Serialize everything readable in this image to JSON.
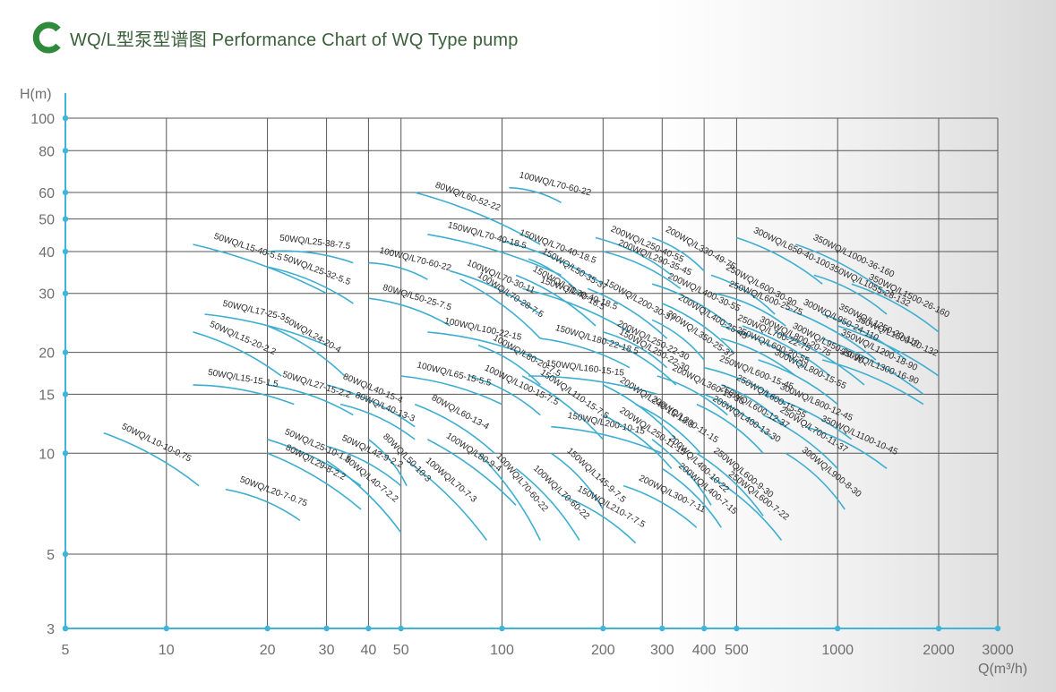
{
  "header": {
    "title": "WQ/L型泵型谱图  Performance Chart of WQ Type pump"
  },
  "colors": {
    "curve": "#3eaed0",
    "axis": "#3fb5d9",
    "grid": "#555555",
    "brand": "#2f8a3c",
    "title": "#3a5f3a"
  },
  "chart_data": {
    "type": "line",
    "ylabel": "H(m)",
    "xlabel": "Q(m³/h)",
    "x_scale": "log",
    "y_scale": "log",
    "xlim": [
      5,
      3000
    ],
    "ylim": [
      3,
      100
    ],
    "x_ticks": [
      5,
      10,
      20,
      30,
      40,
      50,
      100,
      200,
      300,
      400,
      500,
      1000,
      2000,
      3000
    ],
    "x_tick_labels": [
      "5",
      "10",
      "20",
      "30",
      "40",
      "50",
      "100",
      "200",
      "300",
      "400",
      "500",
      "1000",
      "2000",
      "3000"
    ],
    "y_ticks": [
      3,
      5,
      10,
      15,
      20,
      30,
      40,
      50,
      60,
      80,
      100
    ],
    "y_tick_labels": [
      "3",
      "5",
      "10",
      "15",
      "20",
      "30",
      "40",
      "50",
      "60",
      "80",
      "100"
    ],
    "grid": true,
    "series": [
      {
        "name": "100WQ/L70-60-22",
        "q": [
          105,
          150
        ],
        "h": [
          62,
          56
        ]
      },
      {
        "name": "80WQ/L60-52-22",
        "q": [
          55,
          130
        ],
        "h": [
          60,
          42
        ]
      },
      {
        "name": "150WQ/L70-40-18.5",
        "q": [
          60,
          150
        ],
        "h": [
          45,
          34
        ]
      },
      {
        "name": "50WQ/L15-40-5.5",
        "q": [
          12,
          30
        ],
        "h": [
          42,
          30
        ]
      },
      {
        "name": "50WQ/L25-38-7.5",
        "q": [
          20,
          36
        ],
        "h": [
          40,
          37
        ]
      },
      {
        "name": "50WQ/L25-32-5.5",
        "q": [
          20,
          36
        ],
        "h": [
          36,
          28
        ]
      },
      {
        "name": "100WQ/L70-60-22",
        "q": [
          40,
          60
        ],
        "h": [
          37,
          33
        ]
      },
      {
        "name": "100WQ/L70-30-11",
        "q": [
          70,
          130
        ],
        "h": [
          35,
          26
        ]
      },
      {
        "name": "100WQ/L70-28-7.5",
        "q": [
          75,
          130
        ],
        "h": [
          33,
          22
        ]
      },
      {
        "name": "80WQ/L50-25-7.5",
        "q": [
          40,
          70
        ],
        "h": [
          29,
          24
        ]
      },
      {
        "name": "50WQ/L17-25-3",
        "q": [
          13,
          30
        ],
        "h": [
          26,
          21
        ]
      },
      {
        "name": "50WQ/L15-20-2.2",
        "q": [
          12,
          22
        ],
        "h": [
          23,
          17
        ]
      },
      {
        "name": "50WQ/L24-20-4",
        "q": [
          20,
          34
        ],
        "h": [
          24,
          17
        ]
      },
      {
        "name": "100WQ/L100-22-15",
        "q": [
          60,
          130
        ],
        "h": [
          23,
          19
        ]
      },
      {
        "name": "100WQ/L80-20-7.5",
        "q": [
          85,
          130
        ],
        "h": [
          21,
          16
        ]
      },
      {
        "name": "50WQ/L15-15-1.5",
        "q": [
          12,
          24
        ],
        "h": [
          16,
          14
        ]
      },
      {
        "name": "50WQ/L27-15-2.2",
        "q": [
          20,
          36
        ],
        "h": [
          16,
          13
        ]
      },
      {
        "name": "80WQ/L40-15-4",
        "q": [
          30,
          55
        ],
        "h": [
          16,
          12
        ]
      },
      {
        "name": "80WQ/L40-13-3",
        "q": [
          33,
          55
        ],
        "h": [
          14,
          11
        ]
      },
      {
        "name": "100WQ/L65-15-5.5",
        "q": [
          50,
          100
        ],
        "h": [
          17,
          14
        ]
      },
      {
        "name": "80WQ/L60-13-4",
        "q": [
          55,
          95
        ],
        "h": [
          14,
          10
        ]
      },
      {
        "name": "100WQ/L100-15-7.5",
        "q": [
          80,
          130
        ],
        "h": [
          17,
          13
        ]
      },
      {
        "name": "150WQ/L110-15-7.5",
        "q": [
          115,
          200
        ],
        "h": [
          17,
          11
        ]
      },
      {
        "name": "150WQ/L160-15-15",
        "q": [
          120,
          290
        ],
        "h": [
          17,
          15
        ]
      },
      {
        "name": "150WQ/L200-10-15",
        "q": [
          140,
          300
        ],
        "h": [
          12,
          10
        ]
      },
      {
        "name": "150WQ/L145-9-7.5",
        "q": [
          140,
          200
        ],
        "h": [
          10,
          6.8
        ]
      },
      {
        "name": "150WQ/L210-7-7.5",
        "q": [
          150,
          250
        ],
        "h": [
          7.5,
          5.4
        ]
      },
      {
        "name": "50WQ/L10-10-0.75",
        "q": [
          6.5,
          12.5
        ],
        "h": [
          11.5,
          8
        ]
      },
      {
        "name": "50WQ/L25-10-1.5",
        "q": [
          20,
          38
        ],
        "h": [
          11,
          8
        ]
      },
      {
        "name": "80WQ/L29-8-2.2",
        "q": [
          20,
          38
        ],
        "h": [
          10,
          6.8
        ]
      },
      {
        "name": "50WQ/L20-7-0.75",
        "q": [
          15,
          25
        ],
        "h": [
          7.8,
          6.3
        ]
      },
      {
        "name": "80WQ/L50-10-3",
        "q": [
          40,
          52
        ],
        "h": [
          11,
          8
        ]
      },
      {
        "name": "50WQ/L42-9-2.2",
        "q": [
          30,
          50
        ],
        "h": [
          10.5,
          8
        ]
      },
      {
        "name": "80WQ/L40-7-2.2",
        "q": [
          30,
          50
        ],
        "h": [
          9.5,
          5.8
        ]
      },
      {
        "name": "100WQ/L80-9-4",
        "q": [
          60,
          110
        ],
        "h": [
          11,
          7
        ]
      },
      {
        "name": "100WQ/L70-7-3",
        "q": [
          52,
          90
        ],
        "h": [
          9.5,
          5.5
        ]
      },
      {
        "name": "100WQ/L70-60-22",
        "q": [
          85,
          130
        ],
        "h": [
          10,
          5.5
        ]
      },
      {
        "name": "100WQ/L70-60-22",
        "q": [
          110,
          170
        ],
        "h": [
          9,
          5.5
        ]
      },
      {
        "name": "150WQ/L70-40-18.5",
        "q": [
          100,
          200
        ],
        "h": [
          43,
          32
        ]
      },
      {
        "name": "150WQ/L50-35-37",
        "q": [
          120,
          170
        ],
        "h": [
          38,
          30
        ]
      },
      {
        "name": "150WQ/L70-40-18.5",
        "q": [
          110,
          190
        ],
        "h": [
          34,
          24
        ]
      },
      {
        "name": "150WQ/L70-40-18.5",
        "q": [
          115,
          240
        ],
        "h": [
          31,
          23
        ]
      },
      {
        "name": "150WQ/L180-22-18.5",
        "q": [
          130,
          240
        ],
        "h": [
          22,
          18
        ]
      },
      {
        "name": "200WQ/L250-40-55",
        "q": [
          190,
          320
        ],
        "h": [
          44,
          34
        ]
      },
      {
        "name": "200WQ/L290-35-45",
        "q": [
          200,
          340
        ],
        "h": [
          40,
          31
        ]
      },
      {
        "name": "200WQ/L330-49-75",
        "q": [
          280,
          400
        ],
        "h": [
          44,
          35
        ]
      },
      {
        "name": "150WQ/L200-30-37",
        "q": [
          180,
          310
        ],
        "h": [
          31,
          22
        ]
      },
      {
        "name": "200WQ/L250-22-30",
        "q": [
          200,
          310
        ],
        "h": [
          23,
          18
        ]
      },
      {
        "name": "150WQ/L250-22-30",
        "q": [
          200,
          330
        ],
        "h": [
          22,
          16
        ]
      },
      {
        "name": "200WQ/L400-30-55",
        "q": [
          280,
          480
        ],
        "h": [
          32,
          24
        ]
      },
      {
        "name": "200WQ/L400-25-45",
        "q": [
          300,
          490
        ],
        "h": [
          28,
          20
        ]
      },
      {
        "name": "200WQ/L350-25-37",
        "q": [
          280,
          400
        ],
        "h": [
          25,
          19
        ]
      },
      {
        "name": "200WQ/L360-15-30",
        "q": [
          290,
          470
        ],
        "h": [
          17,
          13
        ]
      },
      {
        "name": "200WQ/L240-15-18.5",
        "q": [
          200,
          330
        ],
        "h": [
          16,
          11
        ]
      },
      {
        "name": "200WQ/L250-11-15",
        "q": [
          200,
          320
        ],
        "h": [
          13,
          9
        ]
      },
      {
        "name": "200WQ/L300-11-15",
        "q": [
          250,
          390
        ],
        "h": [
          14,
          10
        ]
      },
      {
        "name": "200WQ/L300-7-11",
        "q": [
          230,
          380
        ],
        "h": [
          8,
          6
        ]
      },
      {
        "name": "200WQ/L400-10-22",
        "q": [
          280,
          420
        ],
        "h": [
          11,
          7
        ]
      },
      {
        "name": "200WQ/L400-7-15",
        "q": [
          300,
          450
        ],
        "h": [
          9,
          6
        ]
      },
      {
        "name": "250WQ/L600-30-90",
        "q": [
          420,
          650
        ],
        "h": [
          34,
          26
        ]
      },
      {
        "name": "250WQ/L600-25-75",
        "q": [
          430,
          700
        ],
        "h": [
          30,
          24
        ]
      },
      {
        "name": "250WQ/L700-22-75",
        "q": [
          450,
          800
        ],
        "h": [
          24,
          18
        ]
      },
      {
        "name": "250WQ/L600-20-55",
        "q": [
          450,
          750
        ],
        "h": [
          22,
          17
        ]
      },
      {
        "name": "250WQ/L600-15-45",
        "q": [
          400,
          700
        ],
        "h": [
          18,
          14
        ]
      },
      {
        "name": "250WQ/L600-12-37",
        "q": [
          400,
          640
        ],
        "h": [
          15,
          11
        ]
      },
      {
        "name": "250WQ/L600-15-55",
        "q": [
          450,
          700
        ],
        "h": [
          16,
          12
        ]
      },
      {
        "name": "200WQ/L400-13-30",
        "q": [
          380,
          600
        ],
        "h": [
          14,
          10
        ]
      },
      {
        "name": "250WQ/L600-9-30",
        "q": [
          380,
          600
        ],
        "h": [
          10,
          6.5
        ]
      },
      {
        "name": "250WQ/L600-7-22",
        "q": [
          420,
          680
        ],
        "h": [
          8.5,
          5.5
        ]
      },
      {
        "name": "300WQ/L650-40-100",
        "q": [
          500,
          900
        ],
        "h": [
          44,
          32
        ]
      },
      {
        "name": "300WQ/L800-20-75",
        "q": [
          520,
          950
        ],
        "h": [
          24,
          17
        ]
      },
      {
        "name": "300WQ/L800-15-55",
        "q": [
          580,
          1000
        ],
        "h": [
          19,
          14
        ]
      },
      {
        "name": "300WQ/L800-12-45",
        "q": [
          600,
          1100
        ],
        "h": [
          15,
          11
        ]
      },
      {
        "name": "300WQ/L950-20-90",
        "q": [
          650,
          1200
        ],
        "h": [
          23,
          16
        ]
      },
      {
        "name": "300WQ/L950-24-110",
        "q": [
          700,
          1300
        ],
        "h": [
          27,
          19
        ]
      },
      {
        "name": "250WQ/L700-11-37",
        "q": [
          600,
          1000
        ],
        "h": [
          13,
          9
        ]
      },
      {
        "name": "300WQ/L900-8-30",
        "q": [
          700,
          1050
        ],
        "h": [
          10,
          6.8
        ]
      },
      {
        "name": "350WQ/L1000-36-160",
        "q": [
          750,
          1400
        ],
        "h": [
          42,
          30
        ]
      },
      {
        "name": "350WQ/L1055-28-132",
        "q": [
          850,
          1400
        ],
        "h": [
          34,
          26
        ]
      },
      {
        "name": "350WQ/L1250-20-110",
        "q": [
          900,
          1600
        ],
        "h": [
          26,
          19
        ]
      },
      {
        "name": "350WQ/L1500-26-160",
        "q": [
          1100,
          2000
        ],
        "h": [
          32,
          23
        ]
      },
      {
        "name": "350WQ/L1200-18-90",
        "q": [
          900,
          1800
        ],
        "h": [
          22,
          15
        ]
      },
      {
        "name": "350WQ/L1500-20-132",
        "q": [
          1000,
          2000
        ],
        "h": [
          24,
          17
        ]
      },
      {
        "name": "350WQ/L1300-16-90",
        "q": [
          900,
          1800
        ],
        "h": [
          19,
          14
        ]
      },
      {
        "name": "350WQ/L1100-10-45",
        "q": [
          800,
          1400
        ],
        "h": [
          12,
          9
        ]
      }
    ]
  }
}
